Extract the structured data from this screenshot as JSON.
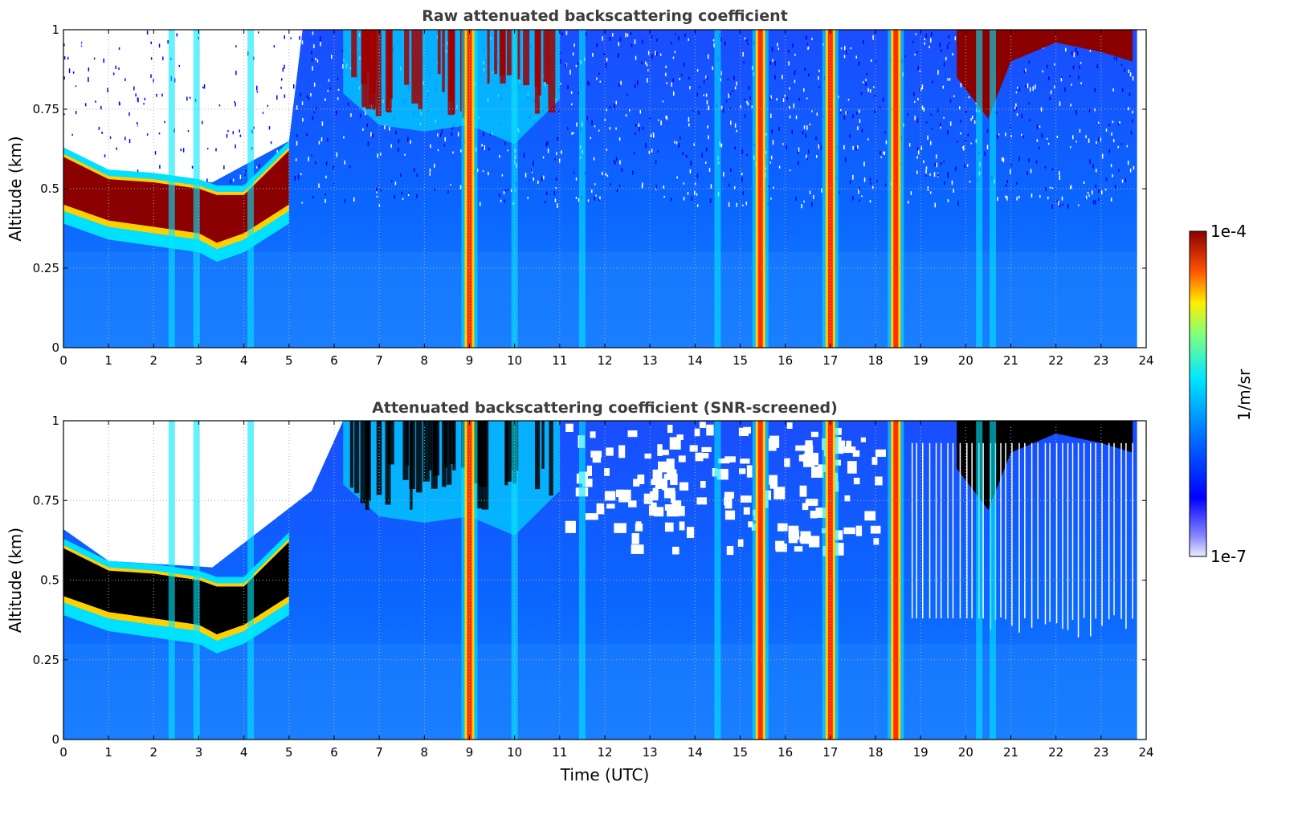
{
  "chart_data": [
    {
      "type": "heatmap",
      "title": "Raw attenuated backscattering coefficient",
      "xlabel": "",
      "ylabel": "Altitude (km)",
      "xlim": [
        0,
        24
      ],
      "ylim": [
        0,
        1
      ],
      "x_ticks": [
        "0",
        "1",
        "2",
        "3",
        "4",
        "5",
        "6",
        "7",
        "8",
        "9",
        "10",
        "11",
        "12",
        "13",
        "14",
        "15",
        "16",
        "17",
        "18",
        "19",
        "20",
        "21",
        "22",
        "23",
        "24"
      ],
      "y_ticks": [
        "0",
        "0.25",
        "0.5",
        "0.75",
        "1"
      ],
      "grid": true,
      "screened": false,
      "cloud_base_layer": [
        {
          "t": 0,
          "base_km": 0.45,
          "top_km": 0.6
        },
        {
          "t": 1,
          "base_km": 0.4,
          "top_km": 0.53
        },
        {
          "t": 2,
          "base_km": 0.38,
          "top_km": 0.52
        },
        {
          "t": 3,
          "base_km": 0.36,
          "top_km": 0.5
        },
        {
          "t": 3.4,
          "base_km": 0.33,
          "top_km": 0.48
        },
        {
          "t": 4,
          "base_km": 0.36,
          "top_km": 0.48
        },
        {
          "t": 5,
          "base_km": 0.45,
          "top_km": 0.62
        }
      ],
      "vertical_streaks_utc": [
        2.4,
        2.95,
        4.15,
        9.0,
        10.0,
        11.5,
        14.5,
        15.45,
        17.0,
        18.45,
        20.3,
        20.6
      ]
    },
    {
      "type": "heatmap",
      "title": "Attenuated backscattering coefficient (SNR-screened)",
      "xlabel": "Time (UTC)",
      "ylabel": "Altitude (km)",
      "xlim": [
        0,
        24
      ],
      "ylim": [
        0,
        1
      ],
      "x_ticks": [
        "0",
        "1",
        "2",
        "3",
        "4",
        "5",
        "6",
        "7",
        "8",
        "9",
        "10",
        "11",
        "12",
        "13",
        "14",
        "15",
        "16",
        "17",
        "18",
        "19",
        "20",
        "21",
        "22",
        "23",
        "24"
      ],
      "y_ticks": [
        "0",
        "0.25",
        "0.5",
        "0.75",
        "1"
      ],
      "grid": true,
      "screened": true
    }
  ],
  "colorbar": {
    "label": "1/m/sr",
    "max_label": "1e-4",
    "min_label": "1e-7",
    "colormap": [
      "#ececfb",
      "#0000ff",
      "#0078ff",
      "#00e8ff",
      "#7fff7f",
      "#ffee00",
      "#ff5000",
      "#8b0000"
    ]
  }
}
